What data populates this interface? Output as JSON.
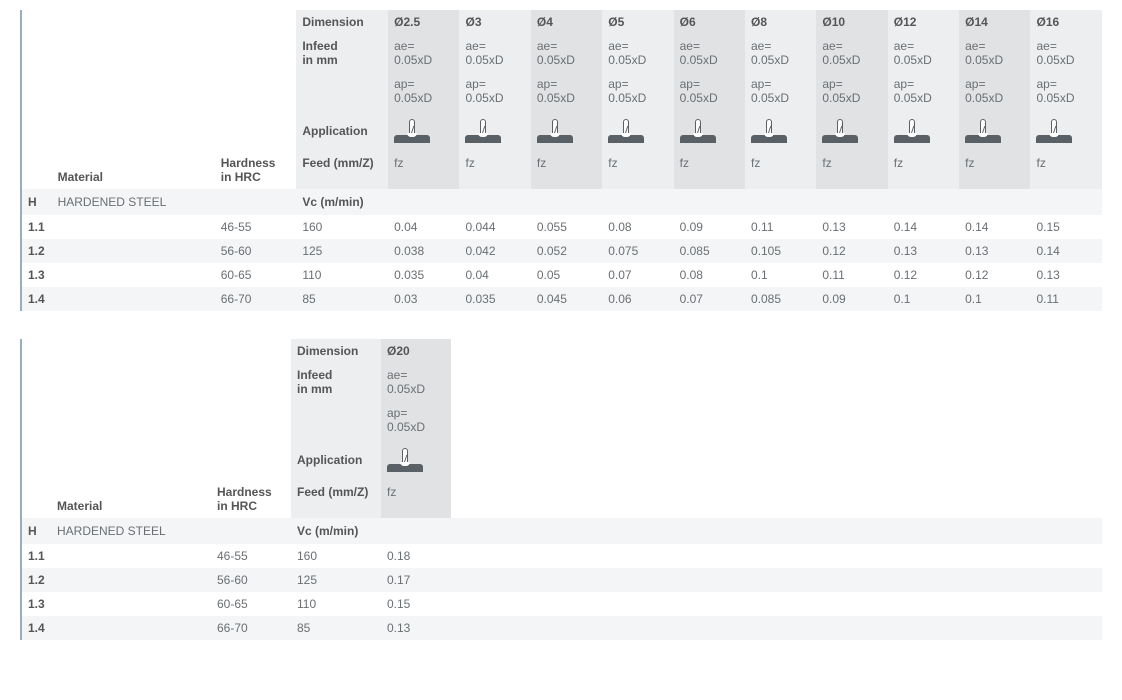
{
  "headers": {
    "dimension": "Dimension",
    "infeed": "Infeed\nin mm",
    "application": "Application",
    "material": "Material",
    "hardness": "Hardness\nin HRC",
    "feed": "Feed (mm/Z)",
    "vc": "Vc (m/min)",
    "fz": "fz",
    "ae": "ae=\n0.05xD",
    "ap": "ap=\n0.05xD"
  },
  "material_group": {
    "code": "H",
    "name": "HARDENED STEEL"
  },
  "table1": {
    "diameters": [
      "Ø2.5",
      "Ø3",
      "Ø4",
      "Ø5",
      "Ø6",
      "Ø8",
      "Ø10",
      "Ø12",
      "Ø14",
      "Ø16"
    ],
    "rows": [
      {
        "id": "1.1",
        "hrc": "46-55",
        "vc": "160",
        "fz": [
          "0.04",
          "0.044",
          "0.055",
          "0.08",
          "0.09",
          "0.11",
          "0.13",
          "0.14",
          "0.14",
          "0.15"
        ]
      },
      {
        "id": "1.2",
        "hrc": "56-60",
        "vc": "125",
        "fz": [
          "0.038",
          "0.042",
          "0.052",
          "0.075",
          "0.085",
          "0.105",
          "0.12",
          "0.13",
          "0.13",
          "0.14"
        ]
      },
      {
        "id": "1.3",
        "hrc": "60-65",
        "vc": "110",
        "fz": [
          "0.035",
          "0.04",
          "0.05",
          "0.07",
          "0.08",
          "0.1",
          "0.11",
          "0.12",
          "0.12",
          "0.13"
        ]
      },
      {
        "id": "1.4",
        "hrc": "66-70",
        "vc": "85",
        "fz": [
          "0.03",
          "0.035",
          "0.045",
          "0.06",
          "0.07",
          "0.085",
          "0.09",
          "0.1",
          "0.1",
          "0.11"
        ]
      }
    ]
  },
  "table2": {
    "diameters": [
      "Ø20"
    ],
    "rows": [
      {
        "id": "1.1",
        "hrc": "46-55",
        "vc": "160",
        "fz": [
          "0.18"
        ]
      },
      {
        "id": "1.2",
        "hrc": "56-60",
        "vc": "125",
        "fz": [
          "0.17"
        ]
      },
      {
        "id": "1.3",
        "hrc": "60-65",
        "vc": "110",
        "fz": [
          "0.15"
        ]
      },
      {
        "id": "1.4",
        "hrc": "66-70",
        "vc": "85",
        "fz": [
          "0.13"
        ]
      }
    ]
  },
  "colors": {
    "accent": "#99aebb",
    "text": "#6a6f73",
    "shade1": "#eceeef",
    "shade2": "#e0e2e4",
    "rowalt": "#f4f5f6",
    "icon": "#5a6166"
  }
}
